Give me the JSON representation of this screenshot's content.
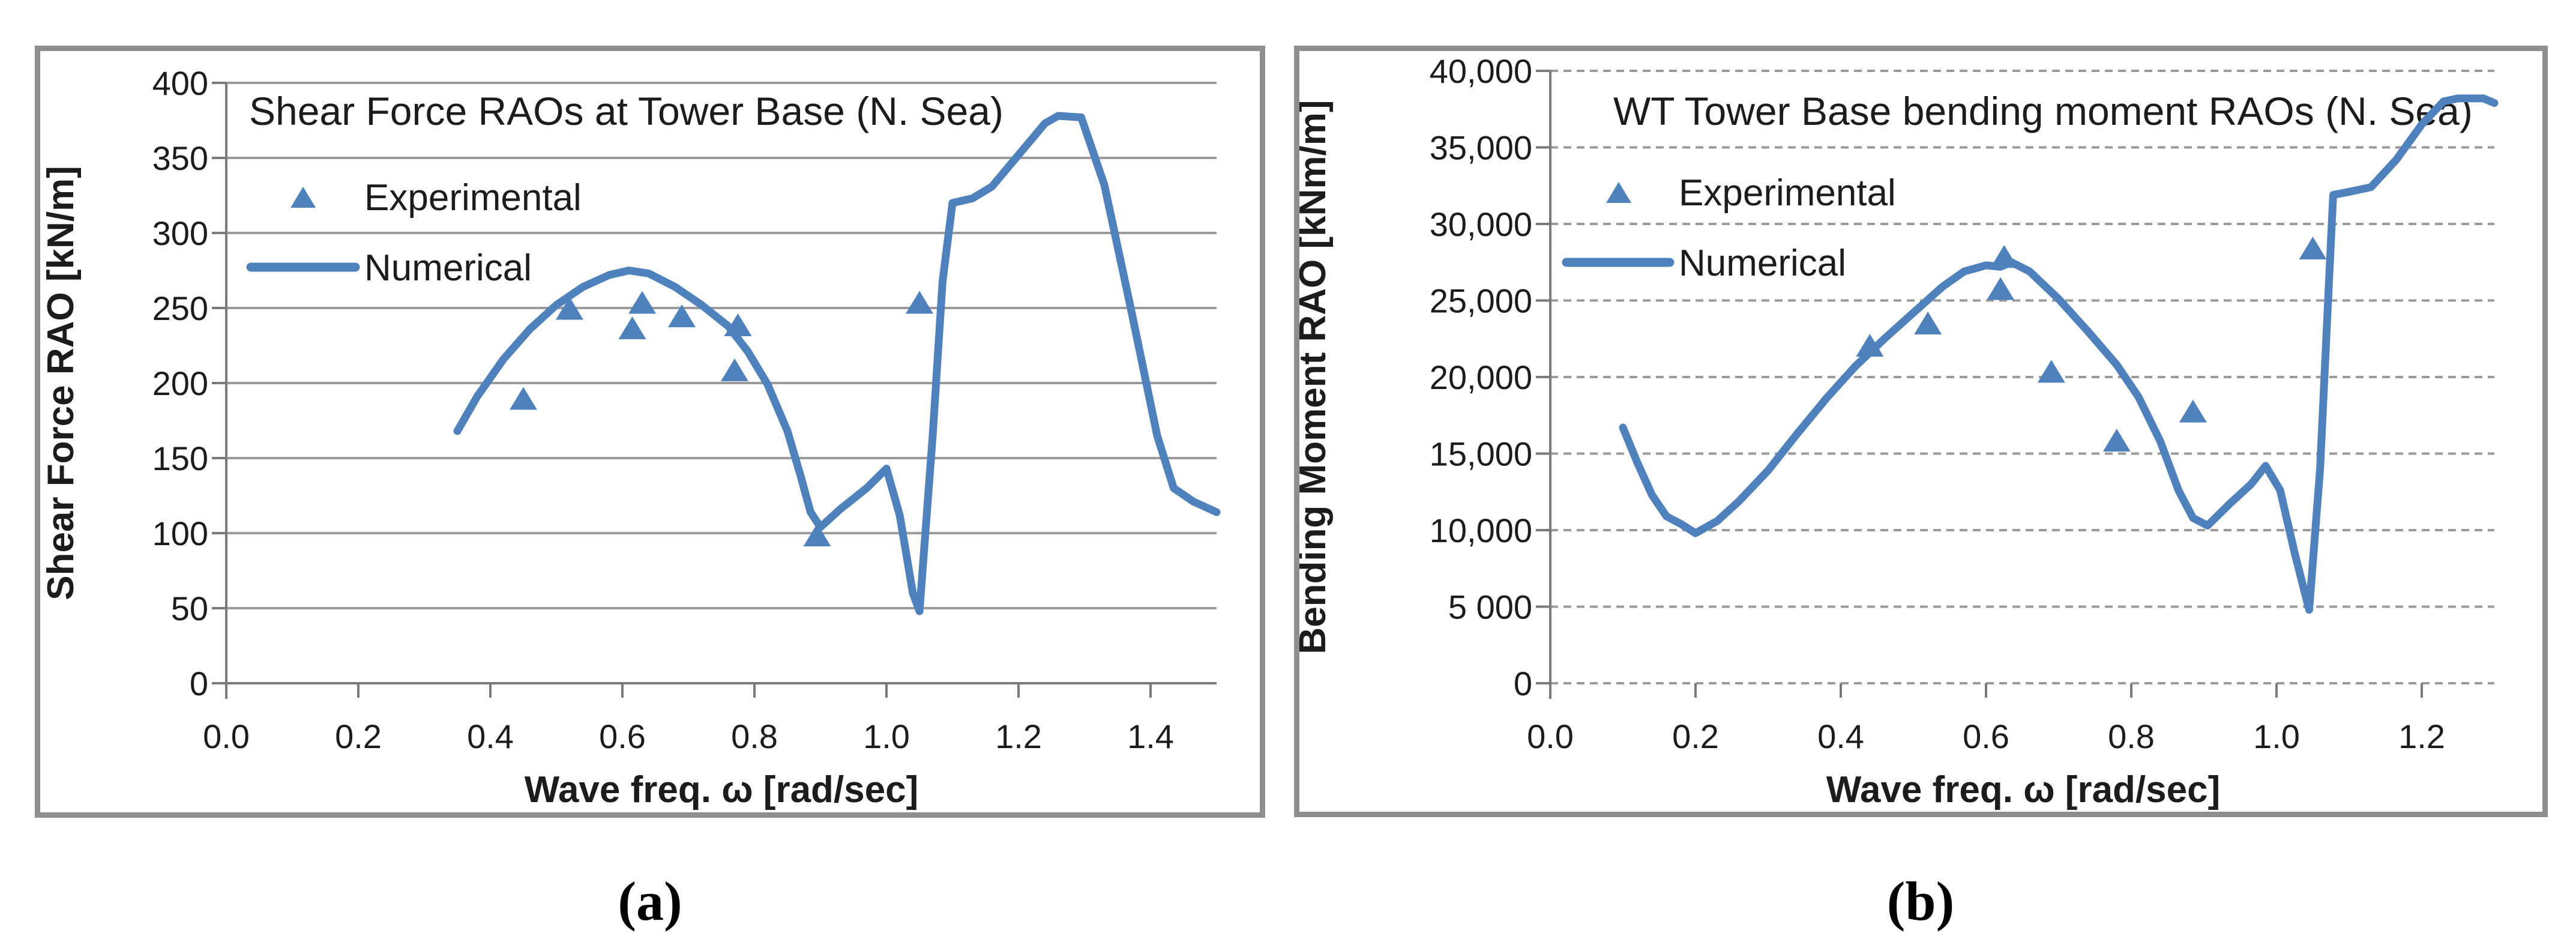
{
  "figure": {
    "background": "#ffffff",
    "series_blue": "#4F81BD",
    "grid_color": "#9B9B9B",
    "axis_color": "#7A7A7A",
    "box_border_color": "#8E8E8E",
    "text_color": "#1C1C1C"
  },
  "chart_data": [
    {
      "id": "a",
      "type": "line",
      "caption": "(a)",
      "title": "Shear Force RAOs at Tower Base (N. Sea)",
      "xlabel": "Wave freq. ω [rad/sec]",
      "ylabel": "Shear Force RAO [kN/m]",
      "xlim": [
        0,
        1.5
      ],
      "ylim": [
        0,
        400
      ],
      "x_ticks": [
        0,
        0.2,
        0.4,
        0.6,
        0.8,
        1.0,
        1.2,
        1.4
      ],
      "x_tick_labels": [
        "0.0",
        "0.2",
        "0.4",
        "0.6",
        "0.8",
        "1.0",
        "1.2",
        "1.4"
      ],
      "y_ticks": [
        0,
        50,
        100,
        150,
        200,
        250,
        300,
        350,
        400
      ],
      "y_tick_labels": [
        "0",
        "50",
        "100",
        "150",
        "200",
        "250",
        "300",
        "350",
        "400"
      ],
      "grid_style": "solid",
      "legend_position": "upper left inside",
      "series": [
        {
          "name": "Experimental",
          "type": "scatter",
          "marker": "triangle",
          "points": [
            [
              0.45,
              189
            ],
            [
              0.52,
              249
            ],
            [
              0.615,
              236
            ],
            [
              0.63,
              253
            ],
            [
              0.69,
              244
            ],
            [
              0.77,
              208
            ],
            [
              0.775,
              238
            ],
            [
              0.895,
              98
            ],
            [
              1.05,
              253
            ]
          ]
        },
        {
          "name": "Numerical",
          "type": "line",
          "points": [
            [
              0.35,
              168
            ],
            [
              0.38,
              191
            ],
            [
              0.42,
              216
            ],
            [
              0.46,
              236
            ],
            [
              0.5,
              252
            ],
            [
              0.54,
              264
            ],
            [
              0.58,
              272
            ],
            [
              0.61,
              275
            ],
            [
              0.64,
              273
            ],
            [
              0.68,
              264
            ],
            [
              0.72,
              252
            ],
            [
              0.76,
              238
            ],
            [
              0.79,
              221
            ],
            [
              0.82,
              199
            ],
            [
              0.85,
              168
            ],
            [
              0.87,
              138
            ],
            [
              0.885,
              114
            ],
            [
              0.9,
              104
            ],
            [
              0.93,
              116
            ],
            [
              0.97,
              130
            ],
            [
              1.0,
              143
            ],
            [
              1.02,
              112
            ],
            [
              1.04,
              60
            ],
            [
              1.05,
              48
            ],
            [
              1.07,
              165
            ],
            [
              1.085,
              268
            ],
            [
              1.1,
              320
            ],
            [
              1.13,
              323
            ],
            [
              1.16,
              331
            ],
            [
              1.2,
              352
            ],
            [
              1.24,
              373
            ],
            [
              1.26,
              378
            ],
            [
              1.295,
              377
            ],
            [
              1.33,
              332
            ],
            [
              1.37,
              250
            ],
            [
              1.41,
              165
            ],
            [
              1.435,
              130
            ],
            [
              1.465,
              121
            ],
            [
              1.5,
              114
            ]
          ]
        }
      ]
    },
    {
      "id": "b",
      "type": "line",
      "caption": "(b)",
      "title": "WT Tower Base bending moment RAOs (N. Sea)",
      "xlabel": "Wave freq. ω [rad/sec]",
      "ylabel": "Bending Moment RAO [kNm/m]",
      "xlim": [
        0,
        1.3
      ],
      "ylim": [
        0,
        40000
      ],
      "x_ticks": [
        0,
        0.2,
        0.4,
        0.6,
        0.8,
        1.0,
        1.2
      ],
      "x_tick_labels": [
        "0.0",
        "0.2",
        "0.4",
        "0.6",
        "0.8",
        "1.0",
        "1.2"
      ],
      "y_ticks": [
        0,
        5000,
        10000,
        15000,
        20000,
        25000,
        30000,
        35000,
        40000
      ],
      "y_tick_labels": [
        "0",
        "5 000",
        "10,000",
        "15,000",
        "20,000",
        "25,000",
        "30,000",
        "35,000",
        "40,000"
      ],
      "grid_style": "dashed",
      "legend_position": "upper left inside",
      "series": [
        {
          "name": "Experimental",
          "type": "scatter",
          "marker": "triangle",
          "points": [
            [
              0.44,
              22000
            ],
            [
              0.52,
              23450
            ],
            [
              0.62,
              25700
            ],
            [
              0.625,
              27800
            ],
            [
              0.69,
              20300
            ],
            [
              0.78,
              15800
            ],
            [
              0.885,
              17700
            ],
            [
              1.05,
              28350
            ]
          ]
        },
        {
          "name": "Numerical",
          "type": "line",
          "points": [
            [
              0.1,
              16700
            ],
            [
              0.12,
              14400
            ],
            [
              0.14,
              12300
            ],
            [
              0.16,
              10900
            ],
            [
              0.18,
              10400
            ],
            [
              0.2,
              9800
            ],
            [
              0.23,
              10600
            ],
            [
              0.26,
              11900
            ],
            [
              0.3,
              13900
            ],
            [
              0.34,
              16300
            ],
            [
              0.38,
              18600
            ],
            [
              0.42,
              20700
            ],
            [
              0.46,
              22500
            ],
            [
              0.5,
              24200
            ],
            [
              0.54,
              25900
            ],
            [
              0.57,
              26900
            ],
            [
              0.6,
              27300
            ],
            [
              0.62,
              27200
            ],
            [
              0.635,
              27500
            ],
            [
              0.66,
              26900
            ],
            [
              0.7,
              25100
            ],
            [
              0.74,
              23000
            ],
            [
              0.78,
              20800
            ],
            [
              0.81,
              18700
            ],
            [
              0.84,
              15800
            ],
            [
              0.865,
              12600
            ],
            [
              0.885,
              10800
            ],
            [
              0.905,
              10300
            ],
            [
              0.935,
              11700
            ],
            [
              0.965,
              13000
            ],
            [
              0.985,
              14200
            ],
            [
              1.005,
              12600
            ],
            [
              1.025,
              8500
            ],
            [
              1.045,
              4800
            ],
            [
              1.06,
              14000
            ],
            [
              1.07,
              24000
            ],
            [
              1.078,
              31900
            ],
            [
              1.1,
              32100
            ],
            [
              1.13,
              32400
            ],
            [
              1.165,
              34200
            ],
            [
              1.2,
              36500
            ],
            [
              1.23,
              38000
            ],
            [
              1.25,
              38200
            ],
            [
              1.285,
              38200
            ],
            [
              1.3,
              37900
            ]
          ]
        }
      ]
    }
  ]
}
